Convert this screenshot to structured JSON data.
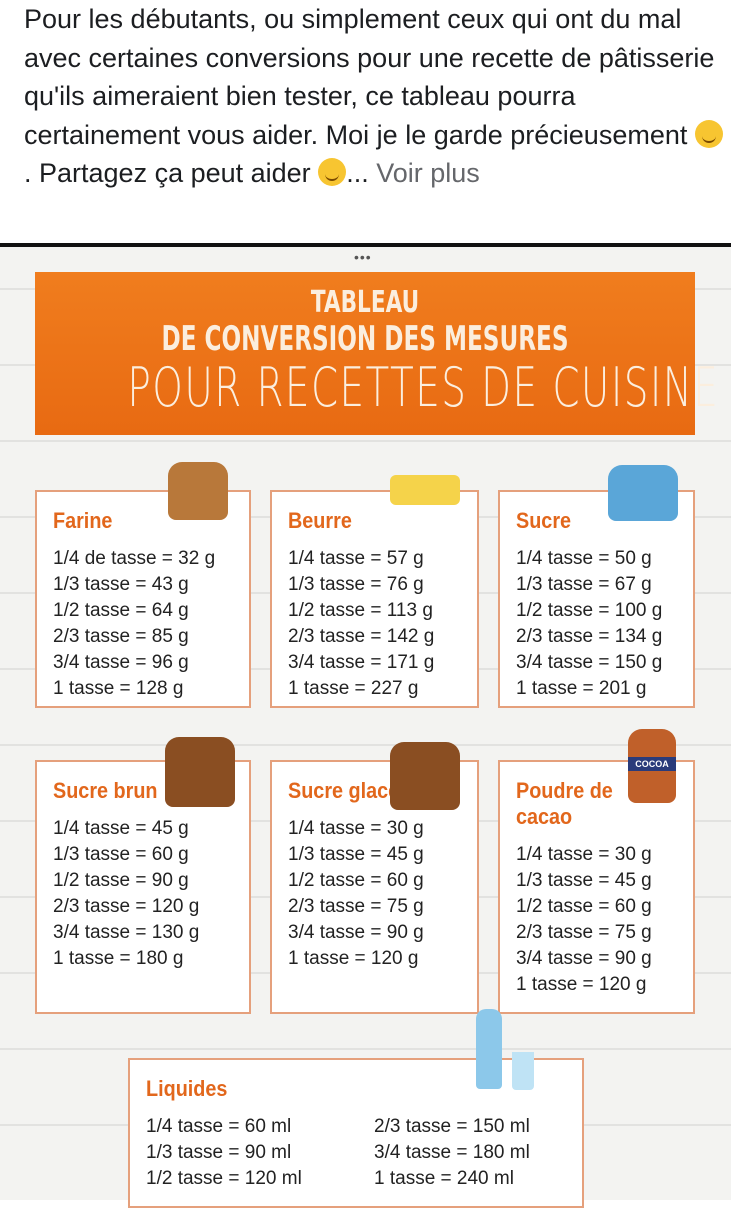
{
  "post": {
    "text": "Pour les débutants, ou simplement ceux qui ont du mal avec certaines conversions pour une recette de pâtisserie qu'ils aimeraient bien tester, ce tableau pourra certainement vous aider. Moi je le garde précieusement",
    "emoji1": "smiling-face-icon",
    "text2": ". Partagez ça peut aider",
    "emoji2": "winking-face-icon",
    "ellipsis": "...",
    "see_more": "Voir plus"
  },
  "image": {
    "dots": "•••",
    "banner": {
      "line1": "TABLEAU",
      "line2": "DE CONVERSION DES MESURES",
      "line3": "POUR RECETTES DE CUISINE"
    },
    "cards": [
      {
        "title": "Farine",
        "rows": [
          "1/4 de tasse = 32 g",
          "1/3  tasse  = 43 g",
          "1/2  tasse = 64 g",
          "2/3  tasse = 85 g",
          "3/4  tasse = 96 g",
          "1  tasse = 128 g"
        ]
      },
      {
        "title": "Beurre",
        "rows": [
          "1/4 tasse = 57 g",
          "1/3 tasse = 76 g",
          "1/2  tasse = 113 g",
          "2/3 tasse = 142 g",
          "3/4 tasse = 171 g",
          "1  tasse = 227 g"
        ]
      },
      {
        "title": "Sucre",
        "rows": [
          "1/4 tasse = 50 g",
          "1/3 tasse = 67 g",
          "1/2  tasse = 100 g",
          "2/3  tasse = 134 g",
          "3/4  tasse = 150 g",
          "1  tasse = 201 g"
        ]
      },
      {
        "title": "Sucre brun",
        "rows": [
          "1/4 tasse = 45 g",
          "1/3 tasse = 60 g",
          "1/2  tasse = 90 g",
          "2/3  tasse = 120 g",
          "3/4 tasse = 130 g",
          "1  tasse  = 180 g"
        ]
      },
      {
        "title": "Sucre glace",
        "rows": [
          "1/4  tasse = 30 g",
          "1/3 tasse = 45 g",
          "1/2  tasse = 60 g",
          "2/3  tasse = 75 g",
          "3/4  tasse = 90 g",
          "1  tasse = 120 g"
        ]
      },
      {
        "title": "Poudre de cacao",
        "rows": [
          "1/4  tasse = 30 g",
          "1/3 tasse  = 45 g",
          "1/2  tasse = 60 g",
          "2/3  tasse = 75 g",
          "3/4  tasse = 90 g",
          "1  tasse = 120 g"
        ]
      }
    ],
    "liquides": {
      "title": "Liquides",
      "rows": [
        "1/4  tasse = 60 ml",
        "2/3  tasse = 150 ml",
        "1/3  tasse = 90 ml",
        "3/4  tasse = 180 ml",
        "1/2  tasse = 120 ml",
        "1  tasse = 240 ml"
      ]
    },
    "cocoa_label": "COCOA",
    "colors": {
      "banner": "#e8721a",
      "title": "#e2671c",
      "border": "#e5a07c"
    }
  }
}
